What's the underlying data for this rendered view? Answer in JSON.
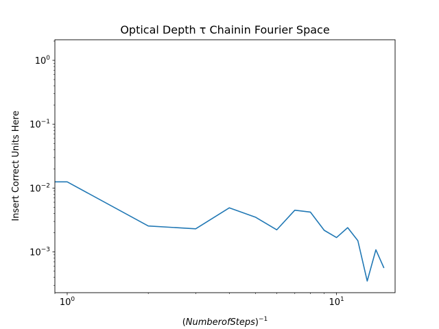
{
  "chart_data": {
    "type": "line",
    "title": "Optical Depth τ Chainin Fourier Space",
    "xlabel": "(NumberofSteps)",
    "xlabel_exponent": "−1",
    "ylabel": "Insert Correct Units Here",
    "xscale": "log",
    "yscale": "log",
    "xlim": [
      0.9,
      16.5
    ],
    "ylim": [
      0.00023,
      2.1
    ],
    "x_ticks": [
      {
        "value": 1,
        "base": "10",
        "exp": "0"
      },
      {
        "value": 10,
        "base": "10",
        "exp": "1"
      }
    ],
    "y_ticks": [
      {
        "value": 0.001,
        "base": "10",
        "exp": "−3"
      },
      {
        "value": 0.01,
        "base": "10",
        "exp": "−2"
      },
      {
        "value": 0.1,
        "base": "10",
        "exp": "−1"
      },
      {
        "value": 1,
        "base": "10",
        "exp": "0"
      }
    ],
    "grid": false,
    "series": [
      {
        "color": "#1f77b4",
        "x": [
          0.9,
          1,
          2,
          3,
          4,
          5,
          6,
          7,
          8,
          9,
          10,
          11,
          12,
          13,
          14,
          15
        ],
        "y": [
          0.0125,
          0.0125,
          0.00255,
          0.0023,
          0.0049,
          0.0035,
          0.00222,
          0.0045,
          0.0042,
          0.00218,
          0.00168,
          0.0024,
          0.0015,
          0.00035,
          0.00108,
          0.00056
        ]
      }
    ]
  }
}
